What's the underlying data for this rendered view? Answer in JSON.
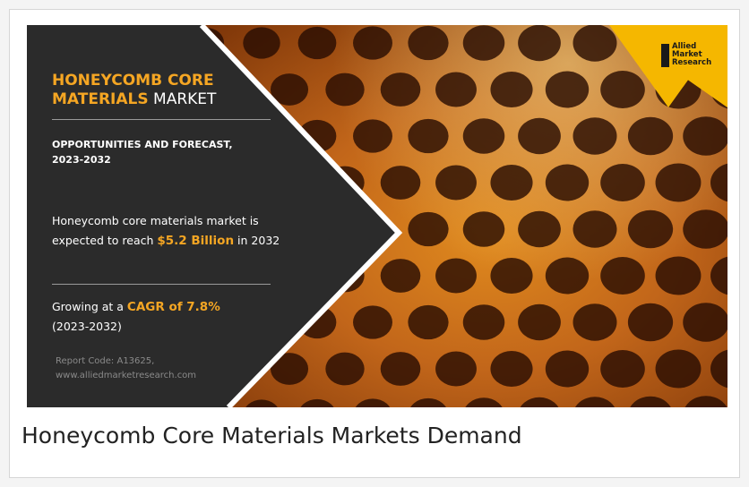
{
  "banner": {
    "title_highlight_1": "HONEYCOMB CORE",
    "title_highlight_2": "MATERIALS",
    "title_plain": " MARKET",
    "subtitle_line1": "OPPORTUNITIES AND FORECAST,",
    "subtitle_line2": "2023-2032",
    "value_text_before": "Honeycomb core materials market is expected to reach ",
    "value_highlight": "$5.2 Billion",
    "value_text_after": " in 2032",
    "cagr_text_before": "Growing at a ",
    "cagr_highlight": "CAGR of 7.8%",
    "cagr_period": "(2023-2032)",
    "report_code": "Report Code: A13625,",
    "website": "www.alliedmarketresearch.com",
    "logo_line1": "Allied",
    "logo_line2": "Market",
    "logo_line3": "Research"
  },
  "caption": "Honeycomb Core Materials Markets Demand",
  "colors": {
    "accent": "#f5a623",
    "panel": "#2b2b2b",
    "logo_bg": "#f5b700"
  },
  "icons": {
    "logo": "allied-market-research-logo-icon"
  }
}
